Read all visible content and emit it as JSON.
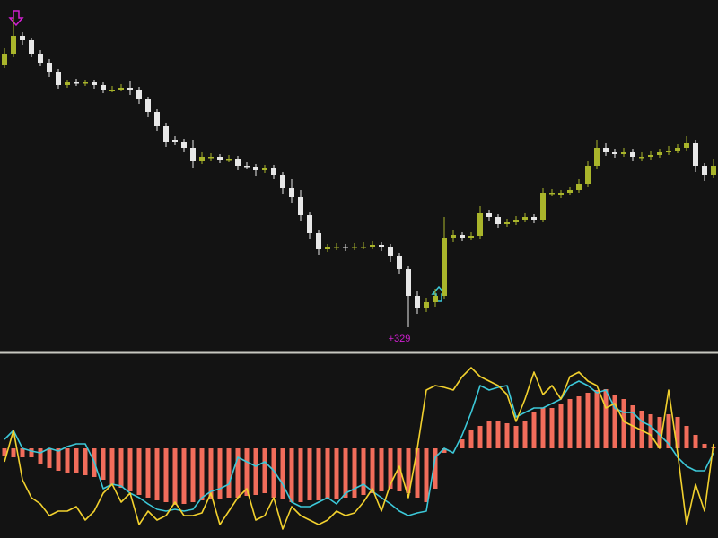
{
  "chart_data": [
    {
      "type": "candlestick",
      "up_color": "#a9b52b",
      "down_color": "#e8e8e8",
      "ylim": [
        0,
        392
      ],
      "annotations": [
        {
          "text": "+329",
          "color": "#d21fd2"
        }
      ],
      "ohlc": [
        [
          320,
          338,
          316,
          332
        ],
        [
          332,
          372,
          328,
          352
        ],
        [
          352,
          356,
          342,
          347
        ],
        [
          347,
          350,
          328,
          332
        ],
        [
          332,
          336,
          318,
          322
        ],
        [
          322,
          326,
          306,
          312
        ],
        [
          312,
          315,
          293,
          297
        ],
        [
          297,
          303,
          294,
          300
        ],
        [
          300,
          304,
          296,
          299
        ],
        [
          299,
          303,
          296,
          300
        ],
        [
          300,
          303,
          293,
          297
        ],
        [
          297,
          300,
          288,
          292
        ],
        [
          292,
          296,
          289,
          292
        ],
        [
          292,
          298,
          290,
          294
        ],
        [
          294,
          302,
          286,
          292
        ],
        [
          292,
          295,
          276,
          282
        ],
        [
          282,
          284,
          262,
          267
        ],
        [
          267,
          270,
          246,
          252
        ],
        [
          252,
          255,
          228,
          234
        ],
        [
          236,
          240,
          230,
          234
        ],
        [
          234,
          237,
          222,
          227
        ],
        [
          227,
          236,
          205,
          212
        ],
        [
          212,
          222,
          209,
          217
        ],
        [
          217,
          221,
          213,
          217
        ],
        [
          217,
          220,
          210,
          214
        ],
        [
          214,
          219,
          211,
          215
        ],
        [
          215,
          218,
          202,
          207
        ],
        [
          207,
          211,
          203,
          206
        ],
        [
          206,
          209,
          196,
          202
        ],
        [
          202,
          208,
          199,
          205
        ],
        [
          205,
          208,
          192,
          197
        ],
        [
          197,
          200,
          176,
          182
        ],
        [
          182,
          192,
          166,
          172
        ],
        [
          172,
          180,
          146,
          152
        ],
        [
          152,
          156,
          126,
          132
        ],
        [
          132,
          135,
          108,
          114
        ],
        [
          114,
          120,
          111,
          116
        ],
        [
          116,
          121,
          113,
          117
        ],
        [
          117,
          120,
          112,
          116
        ],
        [
          116,
          121,
          113,
          117
        ],
        [
          117,
          122,
          114,
          117
        ],
        [
          117,
          123,
          114,
          119
        ],
        [
          119,
          122,
          112,
          117
        ],
        [
          117,
          120,
          100,
          107
        ],
        [
          107,
          110,
          86,
          92
        ],
        [
          92,
          95,
          27,
          62
        ],
        [
          62,
          68,
          42,
          48
        ],
        [
          48,
          60,
          44,
          55
        ],
        [
          55,
          70,
          50,
          62
        ],
        [
          62,
          150,
          58,
          127
        ],
        [
          127,
          135,
          122,
          130
        ],
        [
          130,
          133,
          123,
          127
        ],
        [
          127,
          133,
          124,
          129
        ],
        [
          129,
          162,
          126,
          155
        ],
        [
          155,
          158,
          146,
          150
        ],
        [
          150,
          153,
          138,
          142
        ],
        [
          142,
          148,
          139,
          144
        ],
        [
          144,
          151,
          141,
          147
        ],
        [
          147,
          154,
          144,
          150
        ],
        [
          150,
          153,
          143,
          147
        ],
        [
          147,
          182,
          144,
          177
        ],
        [
          177,
          181,
          173,
          177
        ],
        [
          175,
          180,
          171,
          177
        ],
        [
          177,
          184,
          174,
          180
        ],
        [
          180,
          192,
          177,
          187
        ],
        [
          187,
          212,
          184,
          207
        ],
        [
          207,
          236,
          204,
          227
        ],
        [
          227,
          232,
          218,
          222
        ],
        [
          222,
          226,
          216,
          220
        ],
        [
          220,
          227,
          217,
          222
        ],
        [
          222,
          226,
          213,
          217
        ],
        [
          217,
          222,
          213,
          217
        ],
        [
          217,
          224,
          214,
          219
        ],
        [
          219,
          226,
          216,
          222
        ],
        [
          222,
          229,
          219,
          224
        ],
        [
          224,
          231,
          221,
          227
        ],
        [
          227,
          240,
          224,
          232
        ],
        [
          232,
          236,
          200,
          207
        ],
        [
          207,
          210,
          190,
          197
        ],
        [
          197,
          215,
          193,
          207
        ]
      ]
    },
    {
      "type": "combo",
      "ylim": [
        -100,
        100
      ],
      "series": [
        {
          "kind": "bar",
          "color": "#f26d5b",
          "values": [
            -8,
            -10,
            -10,
            -10,
            -18,
            -22,
            -25,
            -27,
            -28,
            -30,
            -32,
            -35,
            -40,
            -44,
            -48,
            -52,
            -55,
            -58,
            -60,
            -63,
            -62,
            -60,
            -58,
            -57,
            -56,
            -55,
            -55,
            -53,
            -52,
            -50,
            -55,
            -57,
            -60,
            -60,
            -58,
            -58,
            -57,
            -56,
            -55,
            -55,
            -52,
            -50,
            -48,
            -45,
            -48,
            -50,
            -55,
            -60,
            -45,
            -5,
            0,
            10,
            20,
            25,
            30,
            30,
            28,
            25,
            30,
            40,
            45,
            45,
            50,
            55,
            58,
            62,
            65,
            66,
            60,
            55,
            48,
            42,
            38,
            35,
            38,
            35,
            25,
            15,
            5,
            2
          ]
        },
        {
          "kind": "line",
          "color": "#3cc8d8",
          "values": [
            10,
            20,
            0,
            -3,
            -5,
            0,
            -3,
            2,
            5,
            5,
            -15,
            -45,
            -40,
            -42,
            -50,
            -55,
            -62,
            -68,
            -70,
            -68,
            -70,
            -68,
            -55,
            -48,
            -45,
            -40,
            -10,
            -15,
            -20,
            -15,
            -25,
            -40,
            -60,
            -65,
            -65,
            -60,
            -55,
            -62,
            -50,
            -45,
            -40,
            -48,
            -55,
            -62,
            -70,
            -75,
            -72,
            -70,
            -10,
            0,
            -5,
            15,
            40,
            70,
            65,
            68,
            70,
            35,
            40,
            45,
            45,
            50,
            55,
            70,
            75,
            70,
            62,
            65,
            45,
            40,
            40,
            30,
            25,
            15,
            5,
            -10,
            -20,
            -25,
            -25,
            -5
          ]
        },
        {
          "kind": "line",
          "color": "#f2d12e",
          "values": [
            -15,
            20,
            -35,
            -55,
            -62,
            -75,
            -70,
            -70,
            -65,
            -80,
            -70,
            -50,
            -40,
            -60,
            -50,
            -85,
            -70,
            -80,
            -75,
            -60,
            -75,
            -75,
            -72,
            -50,
            -85,
            -70,
            -55,
            -45,
            -80,
            -75,
            -55,
            -90,
            -65,
            -75,
            -80,
            -85,
            -80,
            -70,
            -75,
            -72,
            -60,
            -45,
            -70,
            -40,
            -20,
            -55,
            0,
            65,
            70,
            68,
            65,
            80,
            90,
            80,
            75,
            70,
            60,
            30,
            55,
            85,
            60,
            70,
            55,
            80,
            85,
            75,
            70,
            45,
            50,
            30,
            25,
            20,
            15,
            0,
            65,
            -5,
            -85,
            -40,
            -70,
            5
          ]
        }
      ]
    }
  ]
}
